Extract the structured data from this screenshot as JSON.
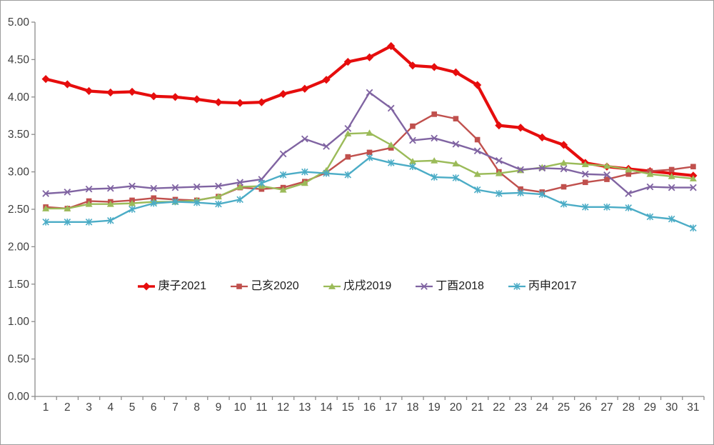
{
  "chart": {
    "background": "#ffffff",
    "border_color": "#9d9d9d",
    "axis_color": "#8c8c8c",
    "tick_label_color": "#3f3f3f",
    "legend_text_color": "#1a1a1a"
  },
  "y_axis": {
    "tick_labels": [
      "0.00",
      "0.50",
      "1.00",
      "1.50",
      "2.00",
      "2.50",
      "3.00",
      "3.50",
      "4.00",
      "4.50",
      "5.00"
    ]
  },
  "x_axis": {
    "tick_labels": [
      "1",
      "2",
      "3",
      "4",
      "5",
      "6",
      "7",
      "8",
      "9",
      "10",
      "11",
      "12",
      "13",
      "14",
      "15",
      "16",
      "17",
      "18",
      "19",
      "20",
      "21",
      "22",
      "23",
      "24",
      "25",
      "26",
      "27",
      "28",
      "29",
      "30",
      "31"
    ]
  },
  "chart_data": {
    "type": "line",
    "title": "",
    "xlabel": "",
    "ylabel": "",
    "ylim": [
      0,
      5
    ],
    "y_step": 0.5,
    "grid": false,
    "legend_position": "center-middle",
    "x": [
      1,
      2,
      3,
      4,
      5,
      6,
      7,
      8,
      9,
      10,
      11,
      12,
      13,
      14,
      15,
      16,
      17,
      18,
      19,
      20,
      21,
      22,
      23,
      24,
      25,
      26,
      27,
      28,
      29,
      30,
      31
    ],
    "series": [
      {
        "name": "庚子2021",
        "color": "#e60d0d",
        "marker": "diamond",
        "line_width": 4.2,
        "values": [
          4.24,
          4.17,
          4.08,
          4.06,
          4.07,
          4.01,
          4.0,
          3.97,
          3.93,
          3.92,
          3.93,
          4.04,
          4.11,
          4.23,
          4.47,
          4.53,
          4.68,
          4.42,
          4.4,
          4.33,
          4.16,
          3.62,
          3.59,
          3.46,
          3.36,
          3.12,
          3.07,
          3.04,
          3.01,
          2.98,
          2.95
        ]
      },
      {
        "name": "己亥2020",
        "color": "#c0504d",
        "marker": "square",
        "line_width": 2.4,
        "values": [
          2.53,
          2.51,
          2.61,
          2.6,
          2.62,
          2.65,
          2.63,
          2.62,
          2.67,
          2.79,
          2.77,
          2.79,
          2.87,
          2.99,
          3.2,
          3.26,
          3.32,
          3.61,
          3.77,
          3.71,
          3.43,
          3.0,
          2.77,
          2.73,
          2.8,
          2.86,
          2.9,
          2.97,
          3.01,
          3.03,
          3.07
        ]
      },
      {
        "name": "戊戌2019",
        "color": "#9bbb59",
        "marker": "triangle",
        "line_width": 2.4,
        "values": [
          2.51,
          2.51,
          2.57,
          2.57,
          2.58,
          2.6,
          2.6,
          2.62,
          2.67,
          2.8,
          2.81,
          2.76,
          2.85,
          3.02,
          3.51,
          3.52,
          3.36,
          3.14,
          3.15,
          3.11,
          2.97,
          2.98,
          3.02,
          3.06,
          3.12,
          3.1,
          3.08,
          3.03,
          2.97,
          2.94,
          2.91
        ]
      },
      {
        "name": "丁酉2018",
        "color": "#8064a2",
        "marker": "x",
        "line_width": 2.4,
        "values": [
          2.71,
          2.73,
          2.77,
          2.78,
          2.81,
          2.78,
          2.79,
          2.8,
          2.81,
          2.86,
          2.9,
          3.24,
          3.44,
          3.34,
          3.58,
          4.06,
          3.85,
          3.42,
          3.45,
          3.37,
          3.28,
          3.15,
          3.03,
          3.05,
          3.04,
          2.97,
          2.96,
          2.71,
          2.8,
          2.79,
          2.79
        ]
      },
      {
        "name": "丙申2017",
        "color": "#4bacc6",
        "marker": "asterisk",
        "line_width": 2.4,
        "values": [
          2.33,
          2.33,
          2.33,
          2.35,
          2.5,
          2.58,
          2.6,
          2.59,
          2.57,
          2.63,
          2.85,
          2.96,
          3.0,
          2.98,
          2.96,
          3.19,
          3.12,
          3.07,
          2.93,
          2.92,
          2.76,
          2.71,
          2.72,
          2.7,
          2.57,
          2.53,
          2.53,
          2.52,
          2.4,
          2.37,
          2.25
        ]
      }
    ]
  }
}
